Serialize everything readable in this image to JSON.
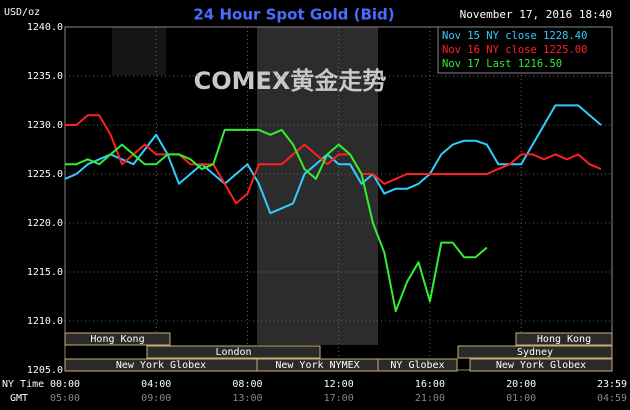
{
  "chart_data": {
    "type": "line",
    "title": "24 Hour Spot Gold (Bid)",
    "subtitle": "November 17, 2016 18:40",
    "y_label": "USD/oz",
    "x_label": "NY Time",
    "x2_label": "GMT",
    "annotation": "COMEX黄金走势",
    "background": "#000000",
    "grid": true,
    "legend": "top-right",
    "x": [
      0,
      0.5,
      1,
      1.5,
      2,
      2.5,
      3,
      3.5,
      4,
      4.5,
      5,
      5.5,
      6,
      6.5,
      7,
      7.5,
      8,
      8.5,
      9,
      9.5,
      10,
      10.5,
      11,
      11.5,
      12,
      12.5,
      13,
      13.5,
      14,
      14.5,
      15,
      15.5,
      16,
      16.5,
      17,
      17.5,
      18,
      18.5,
      19,
      19.5,
      20,
      20.5,
      21,
      21.5,
      22,
      22.5,
      23,
      23.5
    ],
    "xlim": [
      0,
      23.983
    ],
    "xticks": [
      {
        "value": 0,
        "label": "00:00"
      },
      {
        "value": 4,
        "label": "04:00"
      },
      {
        "value": 8,
        "label": "08:00"
      },
      {
        "value": 12,
        "label": "12:00"
      },
      {
        "value": 16,
        "label": "16:00"
      },
      {
        "value": 20,
        "label": "20:00"
      },
      {
        "value": 23.983,
        "label": "23:59"
      }
    ],
    "x2ticks": [
      {
        "value": 0,
        "label": "05:00"
      },
      {
        "value": 4,
        "label": "09:00"
      },
      {
        "value": 8,
        "label": "13:00"
      },
      {
        "value": 12,
        "label": "17:00"
      },
      {
        "value": 16,
        "label": "21:00"
      },
      {
        "value": 20,
        "label": "01:00"
      },
      {
        "value": 23.983,
        "label": "04:59"
      }
    ],
    "ylim": [
      1205,
      1240
    ],
    "yticks": [
      {
        "value": 1205,
        "label": "1205.0"
      },
      {
        "value": 1210,
        "label": "1210.0"
      },
      {
        "value": 1215,
        "label": "1215.0"
      },
      {
        "value": 1220,
        "label": "1220.0"
      },
      {
        "value": 1225,
        "label": "1225.0"
      },
      {
        "value": 1230,
        "label": "1230.0"
      },
      {
        "value": 1235,
        "label": "1235.0"
      },
      {
        "value": 1240,
        "label": "1240.0"
      }
    ],
    "series": [
      {
        "name": "Nov 15 NY close 1228.40",
        "color": "#33ccff",
        "values": [
          1224.5,
          1225,
          1226,
          1226.5,
          1227,
          1226.5,
          1226,
          1227.5,
          1229,
          1227,
          1224,
          1225,
          1226,
          1225,
          1224,
          1225,
          1226,
          1224,
          1221,
          1221.5,
          1222,
          1225,
          1226,
          1227,
          1226,
          1226,
          1224,
          1225,
          1223,
          1223.5,
          1223.5,
          1224,
          1225,
          1227,
          1228,
          1228.4,
          1228.4,
          1228,
          1226,
          1226,
          1226,
          1228,
          1230,
          1232,
          1232,
          1232,
          1231,
          1230
        ]
      },
      {
        "name": "Nov 16 NY close 1225.00",
        "color": "#ff2020",
        "values": [
          1230,
          1230,
          1231,
          1231,
          1229,
          1226,
          1227,
          1228,
          1227,
          1227,
          1227,
          1226,
          1226,
          1226,
          1224,
          1222,
          1223,
          1226,
          1226,
          1226,
          1227,
          1228,
          1227,
          1226,
          1227,
          1227,
          1225,
          1225,
          1224,
          1224.5,
          1225,
          1225,
          1225,
          1225,
          1225,
          1225,
          1225,
          1225,
          1225.5,
          1226,
          1227,
          1227,
          1226.5,
          1227,
          1226.5,
          1227,
          1226,
          1225.5
        ]
      },
      {
        "name": "Nov 17 Last 1216.50",
        "color": "#33ee33",
        "values": [
          1226,
          1226,
          1226.5,
          1226,
          1227,
          1228,
          1227,
          1226,
          1226,
          1227,
          1227,
          1226.5,
          1225.5,
          1226,
          1229.5,
          1229.5,
          1229.5,
          1229.5,
          1229,
          1229.5,
          1228,
          1225.5,
          1224.5,
          1227,
          1228,
          1227,
          1225,
          1220,
          1217,
          1211,
          1214,
          1216,
          1212,
          1218,
          1218,
          1216.5,
          1216.5,
          1217.5,
          null,
          null,
          null,
          null,
          null,
          null,
          null,
          null,
          null,
          null
        ]
      }
    ],
    "sessions": [
      "Hong Kong",
      "London",
      "New York Globex",
      "New York NYMEX",
      "NY Globex",
      "Hong Kong",
      "Sydney",
      "New York Globex"
    ]
  }
}
